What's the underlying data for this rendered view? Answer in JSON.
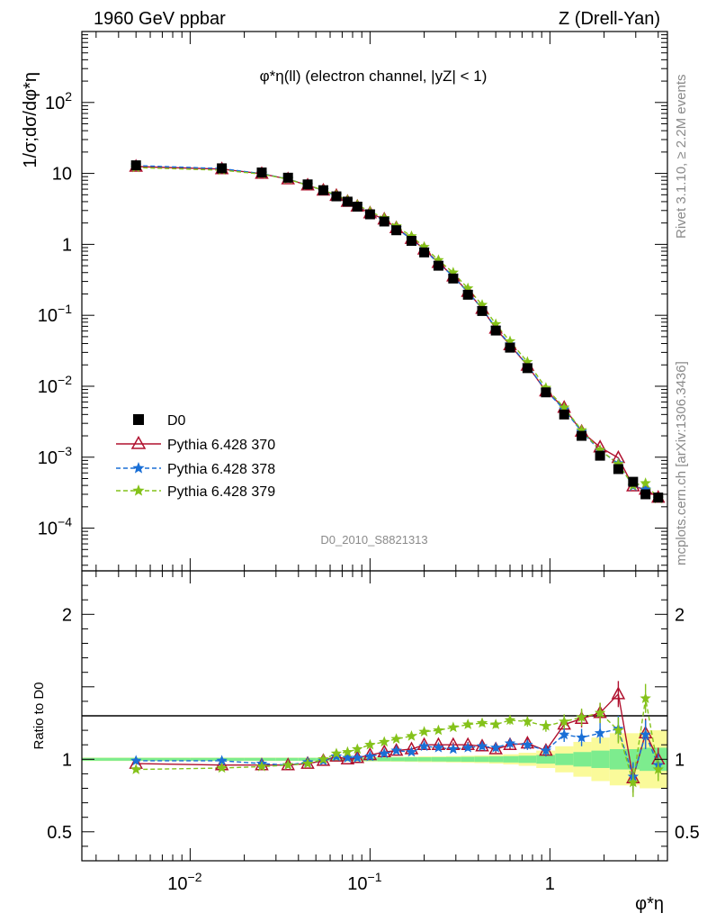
{
  "header": {
    "left": "1960 GeV ppbar",
    "right": "Z (Drell-Yan)"
  },
  "side_labels": {
    "rivet": "Rivet 3.1.10, ≥ 2.2M events",
    "mcplots": "mcplots.cern.ch [arXiv:1306.3436]"
  },
  "plot_title": "φ*η(ll) (electron channel, |yZ| < 1)",
  "watermark": "D0_2010_S8821313",
  "colors": {
    "data": "#000000",
    "p370": "#b0102e",
    "p378": "#1a6fd6",
    "p379": "#84c21a",
    "band_inner": "#7dec8e",
    "band_outer": "#fafa9a"
  },
  "chart_data": [
    {
      "type": "scatter",
      "panel": "main",
      "ylabel": "1/σ;dσ/dφ*η",
      "xscale": "log",
      "yscale": "log",
      "xlim": [
        0.0025,
        4.5
      ],
      "ylim": [
        2.5e-05,
        1000
      ],
      "yticks": [
        {
          "v": 0.0001,
          "base": "10",
          "exp": "−4"
        },
        {
          "v": 0.001,
          "base": "10",
          "exp": "−3"
        },
        {
          "v": 0.01,
          "base": "10",
          "exp": "−2"
        },
        {
          "v": 0.1,
          "base": "10",
          "exp": "−1"
        },
        {
          "v": 1,
          "base": "1",
          "exp": ""
        },
        {
          "v": 10,
          "base": "10",
          "exp": ""
        },
        {
          "v": 100,
          "base": "10",
          "exp": "2"
        }
      ],
      "x": [
        0.005,
        0.015,
        0.025,
        0.035,
        0.045,
        0.055,
        0.065,
        0.075,
        0.085,
        0.1,
        0.12,
        0.14,
        0.17,
        0.2,
        0.24,
        0.29,
        0.35,
        0.42,
        0.5,
        0.6,
        0.75,
        0.95,
        1.2,
        1.5,
        1.9,
        2.4,
        2.9,
        3.4,
        4.0
      ],
      "series": [
        {
          "name": "D0",
          "marker": "square",
          "values": [
            13.0,
            11.8,
            10.3,
            8.7,
            7.0,
            5.8,
            4.75,
            4.0,
            3.4,
            2.65,
            2.1,
            1.58,
            1.12,
            0.77,
            0.5,
            0.33,
            0.195,
            0.115,
            0.061,
            0.035,
            0.018,
            0.0082,
            0.004,
            0.002,
            0.00105,
            0.00068,
            0.00045,
            0.0003,
            0.00027
          ]
        },
        {
          "name": "Pythia 6.428 370",
          "marker": "triangle",
          "values": [
            12.5,
            11.5,
            9.9,
            8.3,
            6.8,
            5.75,
            4.85,
            4.0,
            3.42,
            2.75,
            2.25,
            1.7,
            1.2,
            0.85,
            0.55,
            0.355,
            0.215,
            0.124,
            0.065,
            0.038,
            0.0196,
            0.0085,
            0.005,
            0.0023,
            0.00138,
            0.00098,
            0.00039,
            0.00035,
            0.00027
          ]
        },
        {
          "name": "Pythia 6.428 378",
          "marker": "star",
          "values": [
            12.9,
            11.7,
            9.95,
            8.35,
            6.85,
            5.72,
            4.82,
            4.02,
            3.45,
            2.7,
            2.2,
            1.68,
            1.18,
            0.84,
            0.54,
            0.355,
            0.21,
            0.125,
            0.066,
            0.039,
            0.0198,
            0.0087,
            0.0047,
            0.0023,
            0.00124,
            0.00082,
            0.00039,
            0.00035,
            0.00026
          ]
        },
        {
          "name": "Pythia 6.428 379",
          "marker": "star",
          "values": [
            12.1,
            11.1,
            9.8,
            8.3,
            6.8,
            5.8,
            4.95,
            4.2,
            3.6,
            2.9,
            2.35,
            1.8,
            1.3,
            0.92,
            0.6,
            0.4,
            0.24,
            0.14,
            0.075,
            0.043,
            0.022,
            0.0095,
            0.005,
            0.0024,
            0.00126,
            0.0008,
            0.0004,
            0.00043,
            0.00026
          ]
        }
      ]
    },
    {
      "type": "scatter",
      "panel": "ratio",
      "ylabel": "Ratio to D0",
      "xlabel": "φ*η",
      "xscale": "log",
      "xlim": [
        0.0025,
        4.5
      ],
      "ylim": [
        0.3,
        2.3
      ],
      "yticks": [
        {
          "v": 0.5,
          "label": "0.5"
        },
        {
          "v": 1,
          "label": "1"
        },
        {
          "v": 2,
          "label": "2"
        }
      ],
      "xticks": [
        {
          "v": 0.01,
          "base": "10",
          "exp": "−2"
        },
        {
          "v": 0.1,
          "base": "10",
          "exp": "−1"
        },
        {
          "v": 1,
          "base": "1",
          "exp": ""
        }
      ],
      "x": [
        0.005,
        0.015,
        0.025,
        0.035,
        0.045,
        0.055,
        0.065,
        0.075,
        0.085,
        0.1,
        0.12,
        0.14,
        0.17,
        0.2,
        0.24,
        0.29,
        0.35,
        0.42,
        0.5,
        0.6,
        0.75,
        0.95,
        1.2,
        1.5,
        1.9,
        2.4,
        2.9,
        3.4,
        4.0
      ],
      "x_edges": [
        0.0025,
        0.01,
        0.02,
        0.03,
        0.04,
        0.05,
        0.06,
        0.07,
        0.08,
        0.09,
        0.11,
        0.13,
        0.155,
        0.185,
        0.22,
        0.265,
        0.32,
        0.38,
        0.46,
        0.55,
        0.67,
        0.84,
        1.07,
        1.35,
        1.7,
        2.15,
        2.65,
        3.15,
        3.7,
        4.5
      ],
      "band_inner": [
        0.01,
        0.01,
        0.01,
        0.01,
        0.01,
        0.01,
        0.012,
        0.012,
        0.012,
        0.012,
        0.013,
        0.013,
        0.014,
        0.014,
        0.015,
        0.016,
        0.017,
        0.018,
        0.02,
        0.022,
        0.025,
        0.03,
        0.04,
        0.05,
        0.06,
        0.07,
        0.07,
        0.08,
        0.08
      ],
      "band_outer": [
        0.012,
        0.012,
        0.012,
        0.012,
        0.012,
        0.012,
        0.015,
        0.015,
        0.015,
        0.015,
        0.016,
        0.017,
        0.018,
        0.02,
        0.02,
        0.022,
        0.024,
        0.026,
        0.03,
        0.035,
        0.045,
        0.06,
        0.09,
        0.12,
        0.15,
        0.18,
        0.18,
        0.2,
        0.2
      ],
      "series": [
        {
          "name": "Pythia 6.428 370",
          "values": [
            0.97,
            0.96,
            0.96,
            0.96,
            0.97,
            0.99,
            1.02,
            1.0,
            1.01,
            1.03,
            1.05,
            1.06,
            1.07,
            1.1,
            1.1,
            1.1,
            1.1,
            1.09,
            1.07,
            1.1,
            1.11,
            1.06,
            1.24,
            1.28,
            1.32,
            1.45,
            0.87,
            1.18,
            1.0
          ],
          "errors": [
            0.004,
            0.004,
            0.004,
            0.005,
            0.005,
            0.005,
            0.006,
            0.006,
            0.007,
            0.008,
            0.009,
            0.01,
            0.012,
            0.013,
            0.015,
            0.017,
            0.02,
            0.022,
            0.025,
            0.03,
            0.035,
            0.04,
            0.05,
            0.06,
            0.07,
            0.09,
            0.1,
            0.1,
            0.08
          ]
        },
        {
          "name": "Pythia 6.428 378",
          "values": [
            0.99,
            0.99,
            0.97,
            0.96,
            0.98,
            0.99,
            1.02,
            1.01,
            1.01,
            1.02,
            1.04,
            1.06,
            1.05,
            1.09,
            1.08,
            1.07,
            1.08,
            1.09,
            1.08,
            1.11,
            1.1,
            1.06,
            1.17,
            1.15,
            1.18,
            1.21,
            0.88,
            1.17,
            0.96
          ],
          "errors": [
            0.004,
            0.004,
            0.004,
            0.005,
            0.005,
            0.005,
            0.006,
            0.006,
            0.007,
            0.008,
            0.009,
            0.01,
            0.012,
            0.013,
            0.015,
            0.017,
            0.02,
            0.022,
            0.025,
            0.03,
            0.035,
            0.04,
            0.05,
            0.06,
            0.07,
            0.09,
            0.1,
            0.1,
            0.08
          ]
        },
        {
          "name": "Pythia 6.428 379",
          "values": [
            0.93,
            0.94,
            0.95,
            0.96,
            0.97,
            1.0,
            1.04,
            1.05,
            1.07,
            1.1,
            1.12,
            1.14,
            1.16,
            1.19,
            1.2,
            1.22,
            1.24,
            1.25,
            1.24,
            1.27,
            1.26,
            1.23,
            1.26,
            1.29,
            1.32,
            1.2,
            0.84,
            1.42,
            0.93
          ],
          "errors": [
            0.004,
            0.004,
            0.004,
            0.005,
            0.005,
            0.005,
            0.006,
            0.006,
            0.007,
            0.008,
            0.009,
            0.01,
            0.012,
            0.013,
            0.015,
            0.017,
            0.02,
            0.022,
            0.025,
            0.03,
            0.035,
            0.04,
            0.05,
            0.06,
            0.07,
            0.09,
            0.1,
            0.1,
            0.08
          ]
        }
      ]
    }
  ]
}
